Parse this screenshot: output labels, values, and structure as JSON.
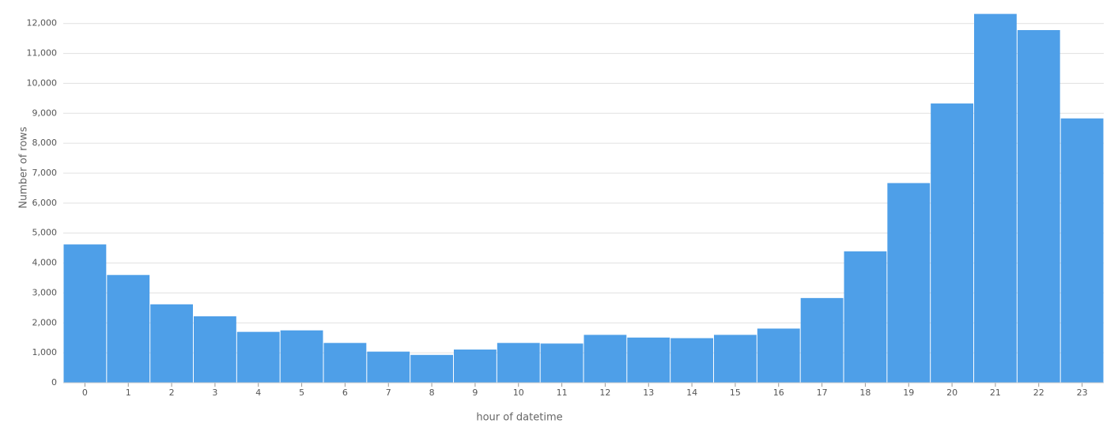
{
  "chart_data": {
    "type": "bar",
    "x_label": "hour of datetime",
    "y_label": "Number of rows",
    "categories": [
      "0",
      "1",
      "2",
      "3",
      "4",
      "5",
      "6",
      "7",
      "8",
      "9",
      "10",
      "11",
      "12",
      "13",
      "14",
      "15",
      "16",
      "17",
      "18",
      "19",
      "20",
      "21",
      "22",
      "23"
    ],
    "values": [
      4620,
      3600,
      2620,
      2220,
      1700,
      1750,
      1330,
      1040,
      930,
      1110,
      1330,
      1310,
      1600,
      1510,
      1490,
      1600,
      1810,
      2830,
      4390,
      6670,
      9330,
      12320,
      11780,
      8830
    ],
    "color": "#4a9de8",
    "ylim": [
      0,
      12600
    ],
    "yticks": [
      0,
      {
        "value": 1000,
        "label": "1,000"
      },
      {
        "value": 2000,
        "label": "2,000"
      },
      {
        "value": 3000,
        "label": "3,000"
      },
      {
        "value": 4000,
        "label": "4,000"
      },
      {
        "value": 5000,
        "label": "5,000"
      },
      {
        "value": 6000,
        "label": "6,000"
      },
      {
        "value": 7000,
        "label": "7,000"
      },
      {
        "value": 8000,
        "label": "8,000"
      },
      {
        "value": 9000,
        "label": "9,000"
      },
      {
        "value": 10000,
        "label": "10,000"
      },
      {
        "value": 11000,
        "label": "11,000"
      },
      {
        "value": 12000,
        "label": "12,000"
      }
    ],
    "grid": true
  }
}
